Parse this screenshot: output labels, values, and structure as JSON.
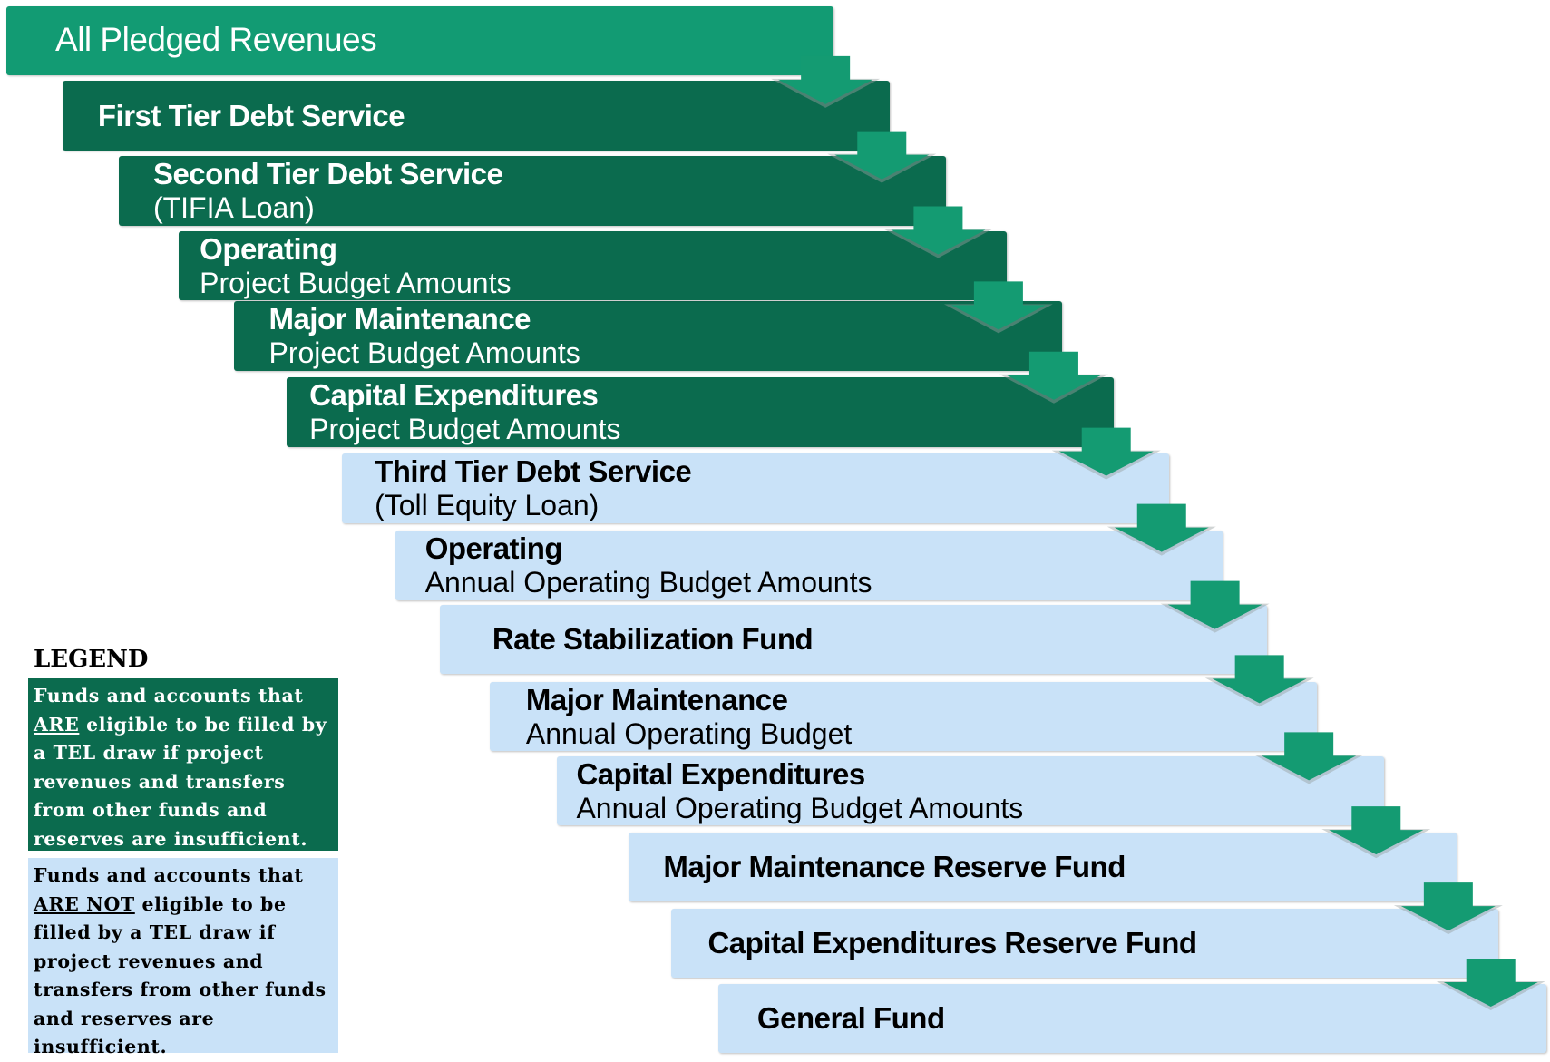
{
  "steps": [
    {
      "title": "All Pledged Revenues",
      "tier": "top"
    },
    {
      "title": "First Tier Debt Service",
      "tier": "eligible"
    },
    {
      "title": "Second Tier Debt Service",
      "subtitle": "(TIFIA Loan)",
      "tier": "eligible"
    },
    {
      "title": "Operating",
      "subtitle": "Project Budget Amounts",
      "tier": "eligible"
    },
    {
      "title": "Major Maintenance",
      "subtitle": "Project Budget Amounts",
      "tier": "eligible"
    },
    {
      "title": "Capital Expenditures",
      "subtitle": "Project Budget Amounts",
      "tier": "eligible"
    },
    {
      "title": "Third Tier Debt Service",
      "subtitle": "(Toll Equity Loan)",
      "tier": "ineligible"
    },
    {
      "title": "Operating",
      "subtitle": "Annual Operating Budget Amounts",
      "tier": "ineligible"
    },
    {
      "title": "Rate Stabilization Fund",
      "tier": "ineligible"
    },
    {
      "title": "Major Maintenance",
      "subtitle": "Annual Operating Budget",
      "tier": "ineligible"
    },
    {
      "title": "Capital Expenditures",
      "subtitle": "Annual Operating Budget Amounts",
      "tier": "ineligible"
    },
    {
      "title": "Major Maintenance Reserve Fund",
      "tier": "ineligible"
    },
    {
      "title": "Capital Expenditures Reserve Fund",
      "tier": "ineligible"
    },
    {
      "title": "General Fund",
      "tier": "ineligible"
    }
  ],
  "legend": {
    "title": "LEGEND",
    "items": [
      {
        "before": "Funds and accounts that ",
        "emphasis": "ARE",
        "after": " eligible to be filled by a TEL draw if project revenues and transfers from other funds and reserves are insufficient.",
        "tier": "eligible"
      },
      {
        "before": "Funds and accounts that ",
        "emphasis": "ARE NOT",
        "after": " eligible to be filled by a TEL draw if project revenues and transfers from other funds and reserves are insufficient.",
        "tier": "ineligible"
      }
    ]
  }
}
